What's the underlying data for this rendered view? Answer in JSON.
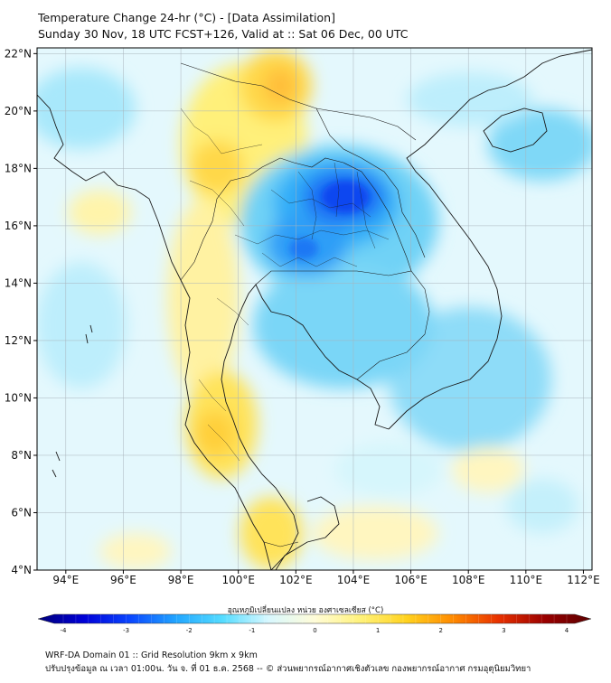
{
  "title_line1": "Temperature Change 24-hr (°C) - [Data Assimilation]",
  "title_line2": "Sunday 30 Nov, 18 UTC FCST+126, Valid at :: Sat 06 Dec, 00 UTC",
  "y_ticks": [
    "22°N",
    "20°N",
    "18°N",
    "16°N",
    "14°N",
    "12°N",
    "10°N",
    "8°N",
    "6°N",
    "4°N"
  ],
  "y_values": [
    22,
    20,
    18,
    16,
    14,
    12,
    10,
    8,
    6,
    4
  ],
  "x_ticks": [
    "94°E",
    "96°E",
    "98°E",
    "100°E",
    "102°E",
    "104°E",
    "106°E",
    "108°E",
    "110°E",
    "112°E"
  ],
  "x_values": [
    94,
    96,
    98,
    100,
    102,
    104,
    106,
    108,
    110,
    112
  ],
  "lon_range": [
    93,
    112.3
  ],
  "lat_range": [
    4,
    22.2
  ],
  "colorbar": {
    "title": "อุณหภูมิเปลี่ยนแปลง หน่วย องศาเซลเซียส (°C)",
    "ticks": [
      "-4",
      "-3",
      "-2",
      "-1",
      "0",
      "1",
      "2",
      "3",
      "4"
    ],
    "values": [
      -4,
      -3,
      -2,
      -1,
      0,
      1,
      2,
      3,
      4
    ],
    "color_stops": [
      "#00007a",
      "#0000d8",
      "#0a46ff",
      "#22a6ff",
      "#54dcff",
      "#d8f8ff",
      "#fffcd8",
      "#fff27a",
      "#ffd21e",
      "#ff8a00",
      "#e83000",
      "#9a0000",
      "#5a0000"
    ]
  },
  "anomalies": [
    {
      "label": "cold-core-northeast-thailand",
      "lon": 103.6,
      "lat": 16.9,
      "value": -3.0
    },
    {
      "label": "cold-central-thailand",
      "lon": 102.6,
      "lat": 15.2,
      "value": -2.3
    },
    {
      "label": "cold-cambodia",
      "lon": 104.5,
      "lat": 13.0,
      "value": -1.2
    },
    {
      "label": "cool-south-china-sea",
      "lon": 110.5,
      "lat": 12.5,
      "value": -0.8
    },
    {
      "label": "cool-hainan",
      "lon": 110.2,
      "lat": 19.5,
      "value": -0.8
    },
    {
      "label": "cool-andaman",
      "lon": 94.5,
      "lat": 12.0,
      "value": -0.6
    },
    {
      "label": "cool-northwest",
      "lon": 94.5,
      "lat": 20.5,
      "value": -0.7
    },
    {
      "label": "warm-myanmar-north",
      "lon": 98.8,
      "lat": 18.5,
      "value": 1.4
    },
    {
      "label": "warm-laos-north",
      "lon": 101.3,
      "lat": 20.8,
      "value": 2.0
    },
    {
      "label": "warm-thai-west",
      "lon": 98.8,
      "lat": 15.5,
      "value": 1.1
    },
    {
      "label": "warm-peninsula",
      "lon": 99.0,
      "lat": 9.0,
      "value": 1.7
    },
    {
      "label": "warm-malaysia",
      "lon": 100.8,
      "lat": 5.8,
      "value": 1.3
    },
    {
      "label": "warm-bay",
      "lon": 95.2,
      "lat": 16.3,
      "value": 0.8
    },
    {
      "label": "warm-south",
      "lon": 104.0,
      "lat": 5.5,
      "value": 0.6
    },
    {
      "label": "warm-east-sea",
      "lon": 108.0,
      "lat": 7.5,
      "value": 0.7
    }
  ],
  "footer_line1": "WRF-DA Domain 01 :: Grid Resolution 9km x 9km",
  "footer_line2": "ปรับปรุงข้อมูล ณ เวลา 01:00น. วัน จ. ที่ 01 ธ.ค. 2568 -- © ส่วนพยากรณ์อากาศเชิงตัวเลข กองพยากรณ์อากาศ กรมอุตุนิยมวิทยา"
}
